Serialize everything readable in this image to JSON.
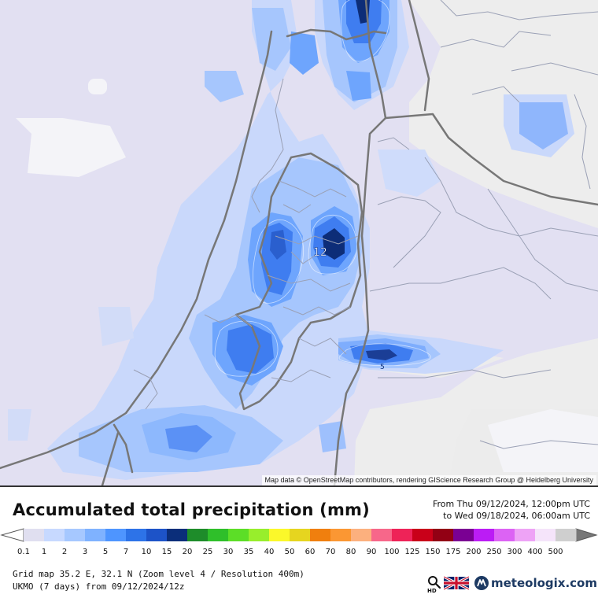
{
  "map": {
    "attribution": "Map data © OpenStreetMap contributors, rendering GIScience Research Group @ Heidelberg University",
    "contour_labels": [
      "12",
      "5"
    ]
  },
  "header": {
    "title": "Accumulated total precipitation (mm)",
    "period_from": "From Thu 09/12/2024, 12:00pm UTC",
    "period_to": "to Wed 09/18/2024, 06:00am UTC"
  },
  "legend": {
    "unit": "mm",
    "steps": [
      {
        "label": "0.1",
        "color": "#e0dff0"
      },
      {
        "label": "1",
        "color": "#c7d9ff"
      },
      {
        "label": "2",
        "color": "#a6c8ff"
      },
      {
        "label": "3",
        "color": "#7fb2ff"
      },
      {
        "label": "5",
        "color": "#4e95ff"
      },
      {
        "label": "7",
        "color": "#2d73e8"
      },
      {
        "label": "10",
        "color": "#1d53c8"
      },
      {
        "label": "15",
        "color": "#0b2e7a"
      },
      {
        "label": "20",
        "color": "#1e8c2a"
      },
      {
        "label": "25",
        "color": "#2fbf2a"
      },
      {
        "label": "30",
        "color": "#5cde27"
      },
      {
        "label": "35",
        "color": "#98ee2c"
      },
      {
        "label": "40",
        "color": "#fbf82a"
      },
      {
        "label": "50",
        "color": "#e6d51f"
      },
      {
        "label": "60",
        "color": "#f07f0e"
      },
      {
        "label": "70",
        "color": "#fb9733"
      },
      {
        "label": "80",
        "color": "#fcb07e"
      },
      {
        "label": "90",
        "color": "#f7678a"
      },
      {
        "label": "100",
        "color": "#ee2358"
      },
      {
        "label": "125",
        "color": "#c90019"
      },
      {
        "label": "150",
        "color": "#920014"
      },
      {
        "label": "175",
        "color": "#7a0093"
      },
      {
        "label": "200",
        "color": "#bb1cf5"
      },
      {
        "label": "250",
        "color": "#dc63f4"
      },
      {
        "label": "300",
        "color": "#eea3f6"
      },
      {
        "label": "400",
        "color": "#f5e4fa"
      },
      {
        "label": "500",
        "color": "#cfcfcf"
      }
    ]
  },
  "footer": {
    "grid_info": "Grid map 35.2 E, 32.1 N (Zoom level 4 / Resolution 400m)",
    "model_info": "UKMO (7 days) from 09/12/2024/12z"
  },
  "toolbar": {
    "zoom_icon": "magnifier-hd-icon",
    "zoom_label": "HD",
    "language_icon": "uk-flag-icon",
    "brand": "meteologix.com",
    "brand_icon": "meteologix-logo-icon"
  }
}
